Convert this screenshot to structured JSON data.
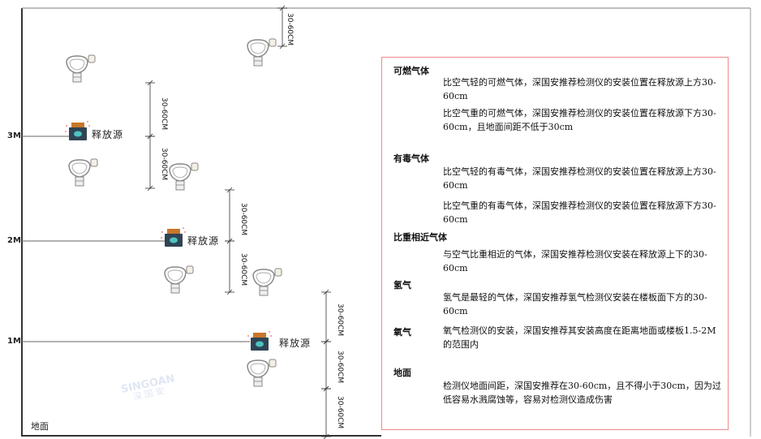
{
  "watermark": {
    "brand": "SINGOAN",
    "cn": "深国安"
  },
  "levels": [
    {
      "label": "3M"
    },
    {
      "label": "2M"
    },
    {
      "label": "1M"
    }
  ],
  "ground_label": "地面",
  "source_label": "释放源",
  "dimension_label": "30-60CM",
  "info": {
    "sections": [
      {
        "title": "可燃气体",
        "paragraphs": [
          "比空气轻的可燃气体，深国安推荐检测仪的安装位置在释放源上方30-60cm",
          "比空气重的可燃气体，深国安推荐检测仪的安装位置在释放源下方30-60cm，且地面间距不低于30cm"
        ]
      },
      {
        "title": "有毒气体",
        "paragraphs": [
          "比空气轻的有毒气体，深国安推荐检测仪的安装位置在释放源上方30-60cm",
          "比空气重的有毒气体，深国安推荐检测仪的安装位置在释放源下方30-60cm"
        ]
      },
      {
        "title": "比重相近气体",
        "paragraphs": [
          "与空气比重相近的气体，深国安推荐检测仪安装在释放源上下的30-60cm"
        ]
      },
      {
        "title": "氢气",
        "paragraphs": [
          "氢气是最轻的气体，深国安推荐氢气检测仪安装在楼板面下方的30-60cm"
        ]
      },
      {
        "title": "氧气",
        "paragraphs": [
          "氧气检测仪的安装，深国安推荐其安装高度在距离地面或楼板1.5-2M的范围内"
        ]
      },
      {
        "title": "地面",
        "paragraphs": [
          "检测仪地面间距，深国安推荐在30-60cm，且不得小于30cm，因为过低容易水溅腐蚀等，容易对检测仪造成伤害"
        ]
      }
    ]
  },
  "colors": {
    "frame": "#333333",
    "info_border": "#f08a8a",
    "source_body": "#2f4454",
    "source_cap": "#c8772a",
    "source_face": "#4fc3c0",
    "detector": "#888888"
  }
}
